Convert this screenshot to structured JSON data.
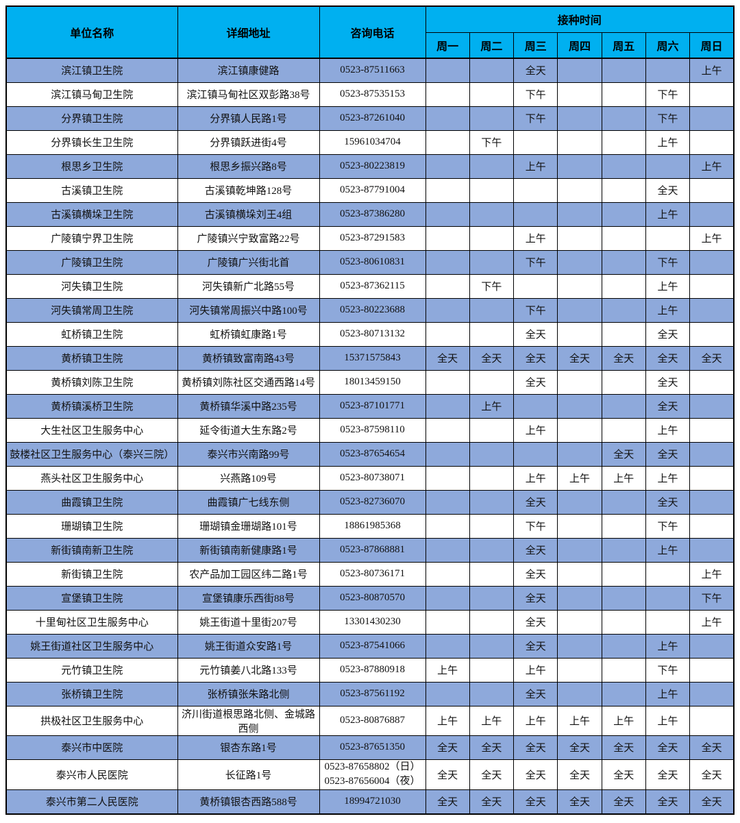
{
  "table": {
    "headers": {
      "unit": "单位名称",
      "address": "详细地址",
      "phone": "咨询电话",
      "schedule_group": "接种时间",
      "days": [
        "周一",
        "周二",
        "周三",
        "周四",
        "周五",
        "周六",
        "周日"
      ]
    },
    "colors": {
      "header_bg": "#00B0F0",
      "stripe_bg": "#8EA9DB",
      "border": "#000000"
    },
    "rows": [
      {
        "unit": "滨江镇卫生院",
        "address": "滨江镇康健路",
        "phone": "0523-87511663",
        "schedule": [
          "",
          "",
          "全天",
          "",
          "",
          "",
          "上午"
        ]
      },
      {
        "unit": "滨江镇马甸卫生院",
        "address": "滨江镇马甸社区双彭路38号",
        "phone": "0523-87535153",
        "schedule": [
          "",
          "",
          "下午",
          "",
          "",
          "下午",
          ""
        ]
      },
      {
        "unit": "分界镇卫生院",
        "address": "分界镇人民路1号",
        "phone": "0523-87261040",
        "schedule": [
          "",
          "",
          "下午",
          "",
          "",
          "下午",
          ""
        ]
      },
      {
        "unit": "分界镇长生卫生院",
        "address": "分界镇跃进街4号",
        "phone": "15961034704",
        "schedule": [
          "",
          "下午",
          "",
          "",
          "",
          "上午",
          ""
        ]
      },
      {
        "unit": "根思乡卫生院",
        "address": "根思乡振兴路8号",
        "phone": "0523-80223819",
        "schedule": [
          "",
          "",
          "上午",
          "",
          "",
          "",
          "上午"
        ]
      },
      {
        "unit": "古溪镇卫生院",
        "address": "古溪镇乾坤路128号",
        "phone": "0523-87791004",
        "schedule": [
          "",
          "",
          "",
          "",
          "",
          "全天",
          ""
        ]
      },
      {
        "unit": "古溪镇横垛卫生院",
        "address": "古溪镇横垛刘王4组",
        "phone": "0523-87386280",
        "schedule": [
          "",
          "",
          "",
          "",
          "",
          "上午",
          ""
        ]
      },
      {
        "unit": "广陵镇宁界卫生院",
        "address": "广陵镇兴宁致富路22号",
        "phone": "0523-87291583",
        "schedule": [
          "",
          "",
          "上午",
          "",
          "",
          "",
          "上午"
        ]
      },
      {
        "unit": "广陵镇卫生院",
        "address": "广陵镇广兴街北首",
        "phone": "0523-80610831",
        "schedule": [
          "",
          "",
          "下午",
          "",
          "",
          "下午",
          ""
        ]
      },
      {
        "unit": "河失镇卫生院",
        "address": "河失镇新广北路55号",
        "phone": "0523-87362115",
        "schedule": [
          "",
          "下午",
          "",
          "",
          "",
          "上午",
          ""
        ]
      },
      {
        "unit": "河失镇常周卫生院",
        "address": "河失镇常周振兴中路100号",
        "phone": "0523-80223688",
        "schedule": [
          "",
          "",
          "下午",
          "",
          "",
          "上午",
          ""
        ]
      },
      {
        "unit": "虹桥镇卫生院",
        "address": "虹桥镇虹康路1号",
        "phone": "0523-80713132",
        "schedule": [
          "",
          "",
          "全天",
          "",
          "",
          "全天",
          ""
        ]
      },
      {
        "unit": "黄桥镇卫生院",
        "address": "黄桥镇致富南路43号",
        "phone": "15371575843",
        "schedule": [
          "全天",
          "全天",
          "全天",
          "全天",
          "全天",
          "全天",
          "全天"
        ]
      },
      {
        "unit": "黄桥镇刘陈卫生院",
        "address": "黄桥镇刘陈社区交通西路14号",
        "phone": "18013459150",
        "schedule": [
          "",
          "",
          "全天",
          "",
          "",
          "全天",
          ""
        ]
      },
      {
        "unit": "黄桥镇溪桥卫生院",
        "address": "黄桥镇华溪中路235号",
        "phone": "0523-87101771",
        "schedule": [
          "",
          "上午",
          "",
          "",
          "",
          "全天",
          ""
        ]
      },
      {
        "unit": "大生社区卫生服务中心",
        "address": "延令街道大生东路2号",
        "phone": "0523-87598110",
        "schedule": [
          "",
          "",
          "上午",
          "",
          "",
          "上午",
          ""
        ]
      },
      {
        "unit": "鼓楼社区卫生服务中心（泰兴三院）",
        "address": "泰兴市兴南路99号",
        "phone": "0523-87654654",
        "schedule": [
          "",
          "",
          "",
          "",
          "全天",
          "全天",
          ""
        ]
      },
      {
        "unit": "燕头社区卫生服务中心",
        "address": "兴燕路109号",
        "phone": "0523-80738071",
        "schedule": [
          "",
          "",
          "上午",
          "上午",
          "上午",
          "上午",
          ""
        ]
      },
      {
        "unit": "曲霞镇卫生院",
        "address": "曲霞镇广七线东侧",
        "phone": "0523-82736070",
        "schedule": [
          "",
          "",
          "全天",
          "",
          "",
          "全天",
          ""
        ]
      },
      {
        "unit": "珊瑚镇卫生院",
        "address": "珊瑚镇金珊瑚路101号",
        "phone": "18861985368",
        "schedule": [
          "",
          "",
          "下午",
          "",
          "",
          "下午",
          ""
        ]
      },
      {
        "unit": "新街镇南新卫生院",
        "address": "新街镇南新健康路1号",
        "phone": "0523-87868881",
        "schedule": [
          "",
          "",
          "全天",
          "",
          "",
          "上午",
          ""
        ]
      },
      {
        "unit": "新街镇卫生院",
        "address": "农产品加工园区纬二路1号",
        "phone": "0523-80736171",
        "schedule": [
          "",
          "",
          "全天",
          "",
          "",
          "",
          "上午"
        ]
      },
      {
        "unit": "宣堡镇卫生院",
        "address": "宣堡镇康乐西街88号",
        "phone": "0523-80870570",
        "schedule": [
          "",
          "",
          "全天",
          "",
          "",
          "",
          "下午"
        ]
      },
      {
        "unit": "十里甸社区卫生服务中心",
        "address": "姚王街道十里街207号",
        "phone": "13301430230",
        "schedule": [
          "",
          "",
          "全天",
          "",
          "",
          "",
          "上午"
        ]
      },
      {
        "unit": "姚王街道社区卫生服务中心",
        "address": "姚王街道众安路1号",
        "phone": "0523-87541066",
        "schedule": [
          "",
          "",
          "全天",
          "",
          "",
          "上午",
          ""
        ]
      },
      {
        "unit": "元竹镇卫生院",
        "address": "元竹镇姜八北路133号",
        "phone": "0523-87880918",
        "schedule": [
          "上午",
          "",
          "上午",
          "",
          "",
          "下午",
          ""
        ]
      },
      {
        "unit": "张桥镇卫生院",
        "address": "张桥镇张朱路北侧",
        "phone": "0523-87561192",
        "schedule": [
          "",
          "",
          "全天",
          "",
          "",
          "上午",
          ""
        ]
      },
      {
        "unit": "拱极社区卫生服务中心",
        "address": "济川街道根思路北侧、金城路西侧",
        "phone": "0523-80876887",
        "schedule": [
          "上午",
          "上午",
          "上午",
          "上午",
          "上午",
          "上午",
          ""
        ]
      },
      {
        "unit": "泰兴市中医院",
        "address": "银杏东路1号",
        "phone": "0523-87651350",
        "schedule": [
          "全天",
          "全天",
          "全天",
          "全天",
          "全天",
          "全天",
          "全天"
        ]
      },
      {
        "unit": "泰兴市人民医院",
        "address": "长征路1号",
        "phone": "0523-87658802（日）\n0523-87656004（夜）",
        "schedule": [
          "全天",
          "全天",
          "全天",
          "全天",
          "全天",
          "全天",
          "全天"
        ]
      },
      {
        "unit": "泰兴市第二人民医院",
        "address": "黄桥镇银杏西路588号",
        "phone": "18994721030",
        "schedule": [
          "全天",
          "全天",
          "全天",
          "全天",
          "全天",
          "全天",
          "全天"
        ]
      }
    ]
  }
}
